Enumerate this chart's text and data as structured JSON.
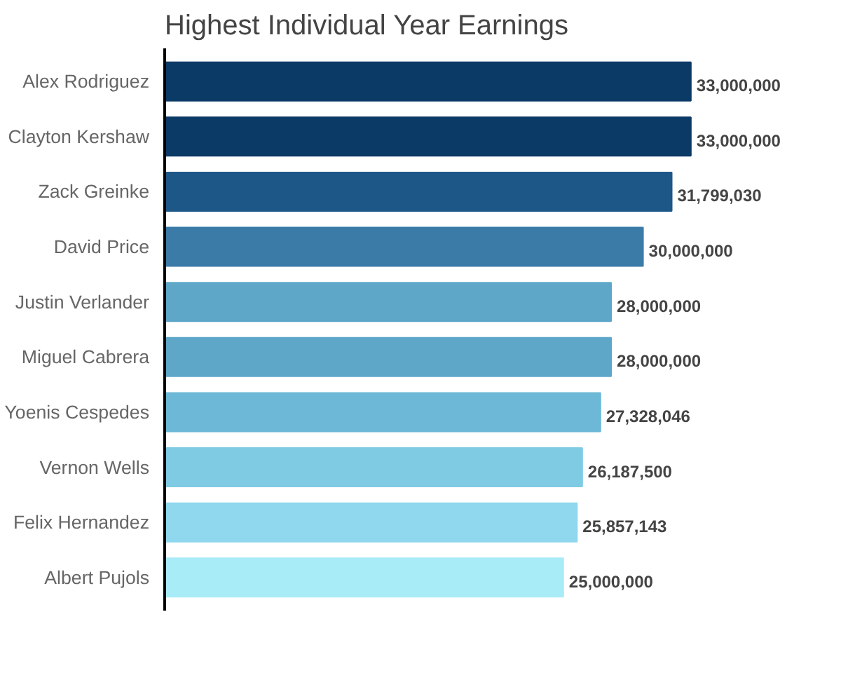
{
  "chart_data": {
    "type": "bar",
    "orientation": "horizontal",
    "title": "Highest Individual Year Earnings",
    "categories": [
      "Alex Rodriguez",
      "Clayton Kershaw",
      "Zack Greinke",
      "David Price",
      "Justin Verlander",
      "Miguel Cabrera",
      "Yoenis Cespedes",
      "Vernon Wells",
      "Felix Hernandez",
      "Albert Pujols"
    ],
    "values": [
      33000000,
      33000000,
      31799030,
      30000000,
      28000000,
      28000000,
      27328046,
      26187500,
      25857143,
      25000000
    ],
    "colors": [
      "#0c3a66",
      "#0c3a66",
      "#1d5788",
      "#3a7ba8",
      "#5ea7c9",
      "#5ea7c9",
      "#6cb8d6",
      "#7fcbe4",
      "#8fd8ee",
      "#a8ecf8"
    ],
    "value_labels": [
      "33,000,000",
      "33,000,000",
      "31,799,030",
      "30,000,000",
      "28,000,000",
      "28,000,000",
      "27,328,046",
      "26,187,500",
      "25,857,143",
      "25,000,000"
    ],
    "tick_labels": "y"
  }
}
